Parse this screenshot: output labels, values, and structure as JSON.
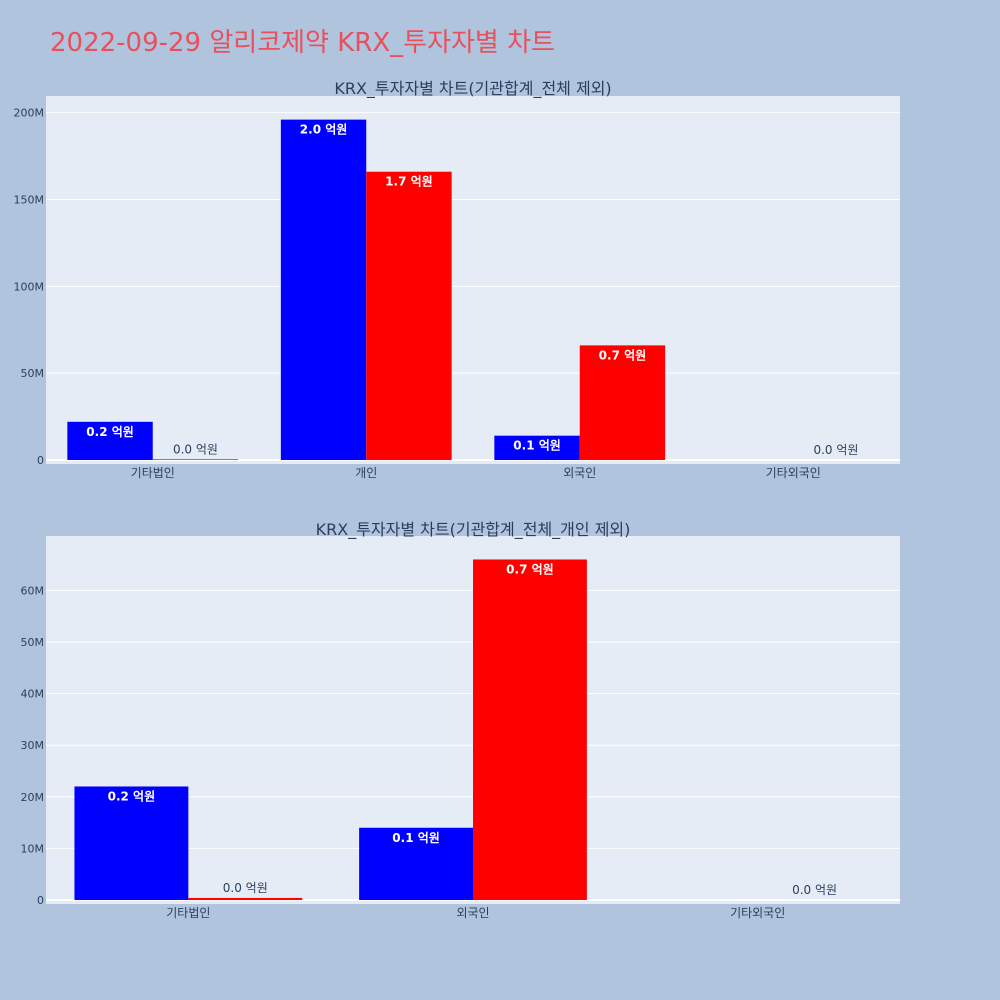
{
  "page": {
    "title": "2022-09-29 알리코제약 KRX_투자자별 차트"
  },
  "colors": {
    "bg": "#b0c4de",
    "plot_bg": "#e5ecf6",
    "grid": "#ffffff",
    "blue": "#0000ff",
    "red": "#ff0000",
    "axis_text": "#2a3f5f",
    "title_color": "#e8505b"
  },
  "chart_data": [
    {
      "type": "bar",
      "title": "KRX_투자자별 차트(기관합계_전체 제외)",
      "categories": [
        "기타법인",
        "개인",
        "외국인",
        "기타외국인"
      ],
      "ylim": [
        0,
        205000000
      ],
      "yticks": [
        0,
        50000000,
        100000000,
        150000000,
        200000000
      ],
      "ytick_labels": [
        "0",
        "50M",
        "100M",
        "150M",
        "200M"
      ],
      "series": [
        {
          "color": "#0000ff",
          "values": [
            22000000,
            196000000,
            14000000,
            0
          ],
          "labels": [
            "0.2 억원",
            "2.0 억원",
            "0.1 억원",
            ""
          ]
        },
        {
          "color": "#ff0000",
          "values": [
            400000,
            166000000,
            66000000,
            0
          ],
          "labels": [
            "0.0 억원",
            "1.7 억원",
            "0.7 억원",
            "0.0 억원"
          ]
        }
      ]
    },
    {
      "type": "bar",
      "title": "KRX_투자자별 차트(기관합계_전체_개인 제외)",
      "categories": [
        "기타법인",
        "외국인",
        "기타외국인"
      ],
      "ylim": [
        0,
        69000000
      ],
      "yticks": [
        0,
        10000000,
        20000000,
        30000000,
        40000000,
        50000000,
        60000000
      ],
      "ytick_labels": [
        "0",
        "10M",
        "20M",
        "30M",
        "40M",
        "50M",
        "60M"
      ],
      "series": [
        {
          "color": "#0000ff",
          "values": [
            22000000,
            14000000,
            0
          ],
          "labels": [
            "0.2 억원",
            "0.1 억원",
            ""
          ]
        },
        {
          "color": "#ff0000",
          "values": [
            400000,
            66000000,
            0
          ],
          "labels": [
            "0.0 억원",
            "0.7 억원",
            "0.0 억원"
          ]
        }
      ]
    }
  ]
}
